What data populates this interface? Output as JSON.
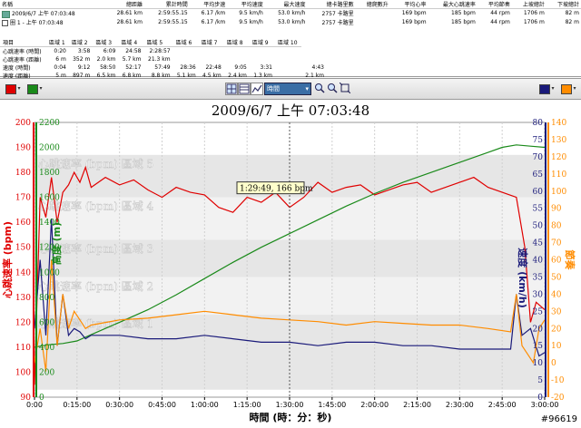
{
  "activities": {
    "columns": [
      "名稱",
      "總距離",
      "累計時間",
      "平均步速",
      "平均速度",
      "最大速度",
      "總卡路里數",
      "總爬數升",
      "平均心率",
      "最大心跳速率",
      "平均節奏",
      "上坡總計",
      "下坡總計"
    ],
    "rows": [
      {
        "name": "2009/6/7 上午 07:03:48",
        "values": [
          "28.61 km",
          "2:59:55.15",
          "6.17 /km",
          "9.5 km/h",
          "53.0 km/h",
          "2757 卡路里",
          "",
          "169 bpm",
          "185 bpm",
          "44 rpm",
          "1706 m",
          "82 m"
        ]
      },
      {
        "name": "圈 1 - 上午 07:03:48",
        "values": [
          "28.61 km",
          "2:59:55.15",
          "6.17 /km",
          "9.5 km/h",
          "53.0 km/h",
          "2757 卡路里",
          "",
          "169 bpm",
          "185 bpm",
          "44 rpm",
          "1706 m",
          "82 m"
        ]
      }
    ]
  },
  "zones": {
    "columns": [
      "項目",
      "區域 1",
      "區域 2",
      "區域 3",
      "區域 4",
      "區域 5",
      "區域 6",
      "區域 7",
      "區域 8",
      "區域 9",
      "區域 10"
    ],
    "rows": [
      {
        "label": "心跳速率 (時間)",
        "values": [
          "0:20",
          "3:58",
          "6:09",
          "24:58",
          "2:28:57",
          "",
          "",
          "",
          "",
          "",
          ""
        ]
      },
      {
        "label": "心跳速率 (距離)",
        "values": [
          "6 m",
          "352 m",
          "2.0 km",
          "5.7 km",
          "21.3 km",
          "",
          "",
          "",
          "",
          "",
          ""
        ]
      },
      {
        "label": "速度 (時間)",
        "values": [
          "0:04",
          "9:12",
          "58:50",
          "52:17",
          "57:49",
          "28:36",
          "22:48",
          "9:05",
          "3:31",
          "",
          "4:43"
        ]
      },
      {
        "label": "速度 (距離)",
        "values": [
          "5 m",
          "897 m",
          "6.5 km",
          "6.8 km",
          "8.8 km",
          "5.1 km",
          "4.5 km",
          "2.4 km",
          "1.3 km",
          "",
          "2.1 km"
        ]
      }
    ]
  },
  "toolbar": {
    "left_color1": "#e00000",
    "left_color2": "#1a8a1a",
    "chart_mode": "時間",
    "right_color1": "#1a1a7a",
    "right_color2": "#ff8c00"
  },
  "chart_data": {
    "type": "line",
    "title": "2009/6/7 上午 07:03:48",
    "xlabel": "時間 (時：分：秒)",
    "x_ticks": [
      "0:00",
      "0:15:00",
      "0:30:00",
      "0:45:00",
      "1:00:00",
      "1:15:00",
      "1:30:00",
      "1:45:00",
      "2:00:00",
      "2:15:00",
      "2:30:00",
      "2:45:00",
      "3:00:00"
    ],
    "xlim": [
      0,
      180
    ],
    "axes": {
      "heart_rate": {
        "label": "心跳速率 (bpm)",
        "ticks": [
          90,
          100,
          110,
          120,
          130,
          140,
          150,
          160,
          170,
          180,
          190,
          200
        ],
        "ylim": [
          90,
          200
        ],
        "color": "#e00000"
      },
      "elevation": {
        "label": "高度 (m)",
        "ticks": [
          0,
          200,
          400,
          600,
          800,
          1000,
          1200,
          1400,
          1600,
          1800,
          2000,
          2200
        ],
        "ylim": [
          0,
          2200
        ],
        "color": "#1a8a1a"
      },
      "speed": {
        "label": "速度 (km/h)",
        "ticks": [
          0,
          5,
          10,
          15,
          20,
          25,
          30,
          35,
          40,
          45,
          50,
          55,
          60,
          65,
          70,
          75,
          80
        ],
        "ylim": [
          0,
          80
        ],
        "color": "#1a1a7a"
      },
      "cadence": {
        "label": "節奏",
        "ticks": [
          -20,
          -10,
          0,
          10,
          20,
          30,
          40,
          50,
          60,
          70,
          80,
          90,
          100,
          110,
          120,
          130,
          140
        ],
        "ylim": [
          -20,
          140
        ],
        "color": "#ff8c00"
      }
    },
    "zones": [
      {
        "label": "心跳速率 (bpm) 區域 5",
        "from": 170,
        "to": 187
      },
      {
        "label": "心跳速率 (bpm) 區域 4",
        "from": 153,
        "to": 170
      },
      {
        "label": "心跳速率 (bpm) 區域 3",
        "from": 138,
        "to": 153
      },
      {
        "label": "心跳速率 (bpm) 區域 2",
        "from": 123,
        "to": 138
      },
      {
        "label": "心跳速率 (bpm) 區域 1",
        "from": 93,
        "to": 123
      }
    ],
    "series": [
      {
        "name": "心跳速率",
        "axis": "heart_rate",
        "x": [
          0,
          2,
          4,
          6,
          8,
          10,
          12,
          14,
          16,
          18,
          20,
          25,
          30,
          35,
          40,
          45,
          50,
          55,
          60,
          65,
          70,
          75,
          80,
          85,
          90,
          95,
          100,
          105,
          110,
          115,
          120,
          125,
          130,
          135,
          140,
          145,
          150,
          155,
          160,
          165,
          170,
          173,
          175,
          177,
          180
        ],
        "y": [
          95,
          170,
          162,
          178,
          160,
          172,
          175,
          180,
          176,
          182,
          174,
          178,
          175,
          177,
          173,
          170,
          174,
          172,
          171,
          166,
          164,
          170,
          168,
          172,
          166,
          170,
          176,
          172,
          174,
          175,
          171,
          173,
          175,
          176,
          172,
          174,
          176,
          178,
          174,
          172,
          170,
          150,
          120,
          128,
          125
        ]
      },
      {
        "name": "高度",
        "axis": "elevation",
        "x": [
          0,
          5,
          10,
          15,
          20,
          30,
          40,
          50,
          60,
          70,
          80,
          90,
          100,
          110,
          120,
          130,
          140,
          150,
          160,
          165,
          170,
          175,
          180
        ],
        "y": [
          400,
          420,
          430,
          450,
          500,
          600,
          700,
          820,
          950,
          1080,
          1200,
          1310,
          1420,
          1530,
          1630,
          1720,
          1800,
          1880,
          1960,
          2000,
          2020,
          2010,
          2000
        ]
      },
      {
        "name": "速度",
        "axis": "speed",
        "x": [
          0,
          2,
          4,
          6,
          8,
          10,
          12,
          14,
          16,
          18,
          20,
          30,
          40,
          50,
          60,
          70,
          80,
          90,
          100,
          110,
          120,
          130,
          140,
          150,
          160,
          168,
          170,
          172,
          175,
          178,
          180
        ],
        "y": [
          20,
          40,
          18,
          52,
          15,
          30,
          18,
          20,
          19,
          17,
          18,
          18,
          17,
          17,
          18,
          17,
          16,
          16,
          15,
          16,
          16,
          15,
          15,
          14,
          14,
          14,
          30,
          18,
          20,
          12,
          13
        ]
      },
      {
        "name": "節奏",
        "axis": "cadence",
        "x": [
          0,
          2,
          4,
          6,
          8,
          10,
          12,
          14,
          16,
          18,
          20,
          30,
          40,
          50,
          60,
          70,
          80,
          90,
          100,
          110,
          120,
          130,
          140,
          150,
          160,
          168,
          170,
          172,
          174,
          176,
          178,
          180
        ],
        "y": [
          0,
          20,
          -5,
          60,
          10,
          40,
          20,
          30,
          25,
          20,
          22,
          25,
          26,
          28,
          30,
          28,
          26,
          25,
          24,
          22,
          24,
          23,
          22,
          22,
          20,
          18,
          40,
          10,
          5,
          0,
          20,
          25
        ]
      }
    ],
    "cursor": {
      "x": 90,
      "label": "1:29:49, 166 bpm"
    }
  },
  "watermark": "#96619"
}
